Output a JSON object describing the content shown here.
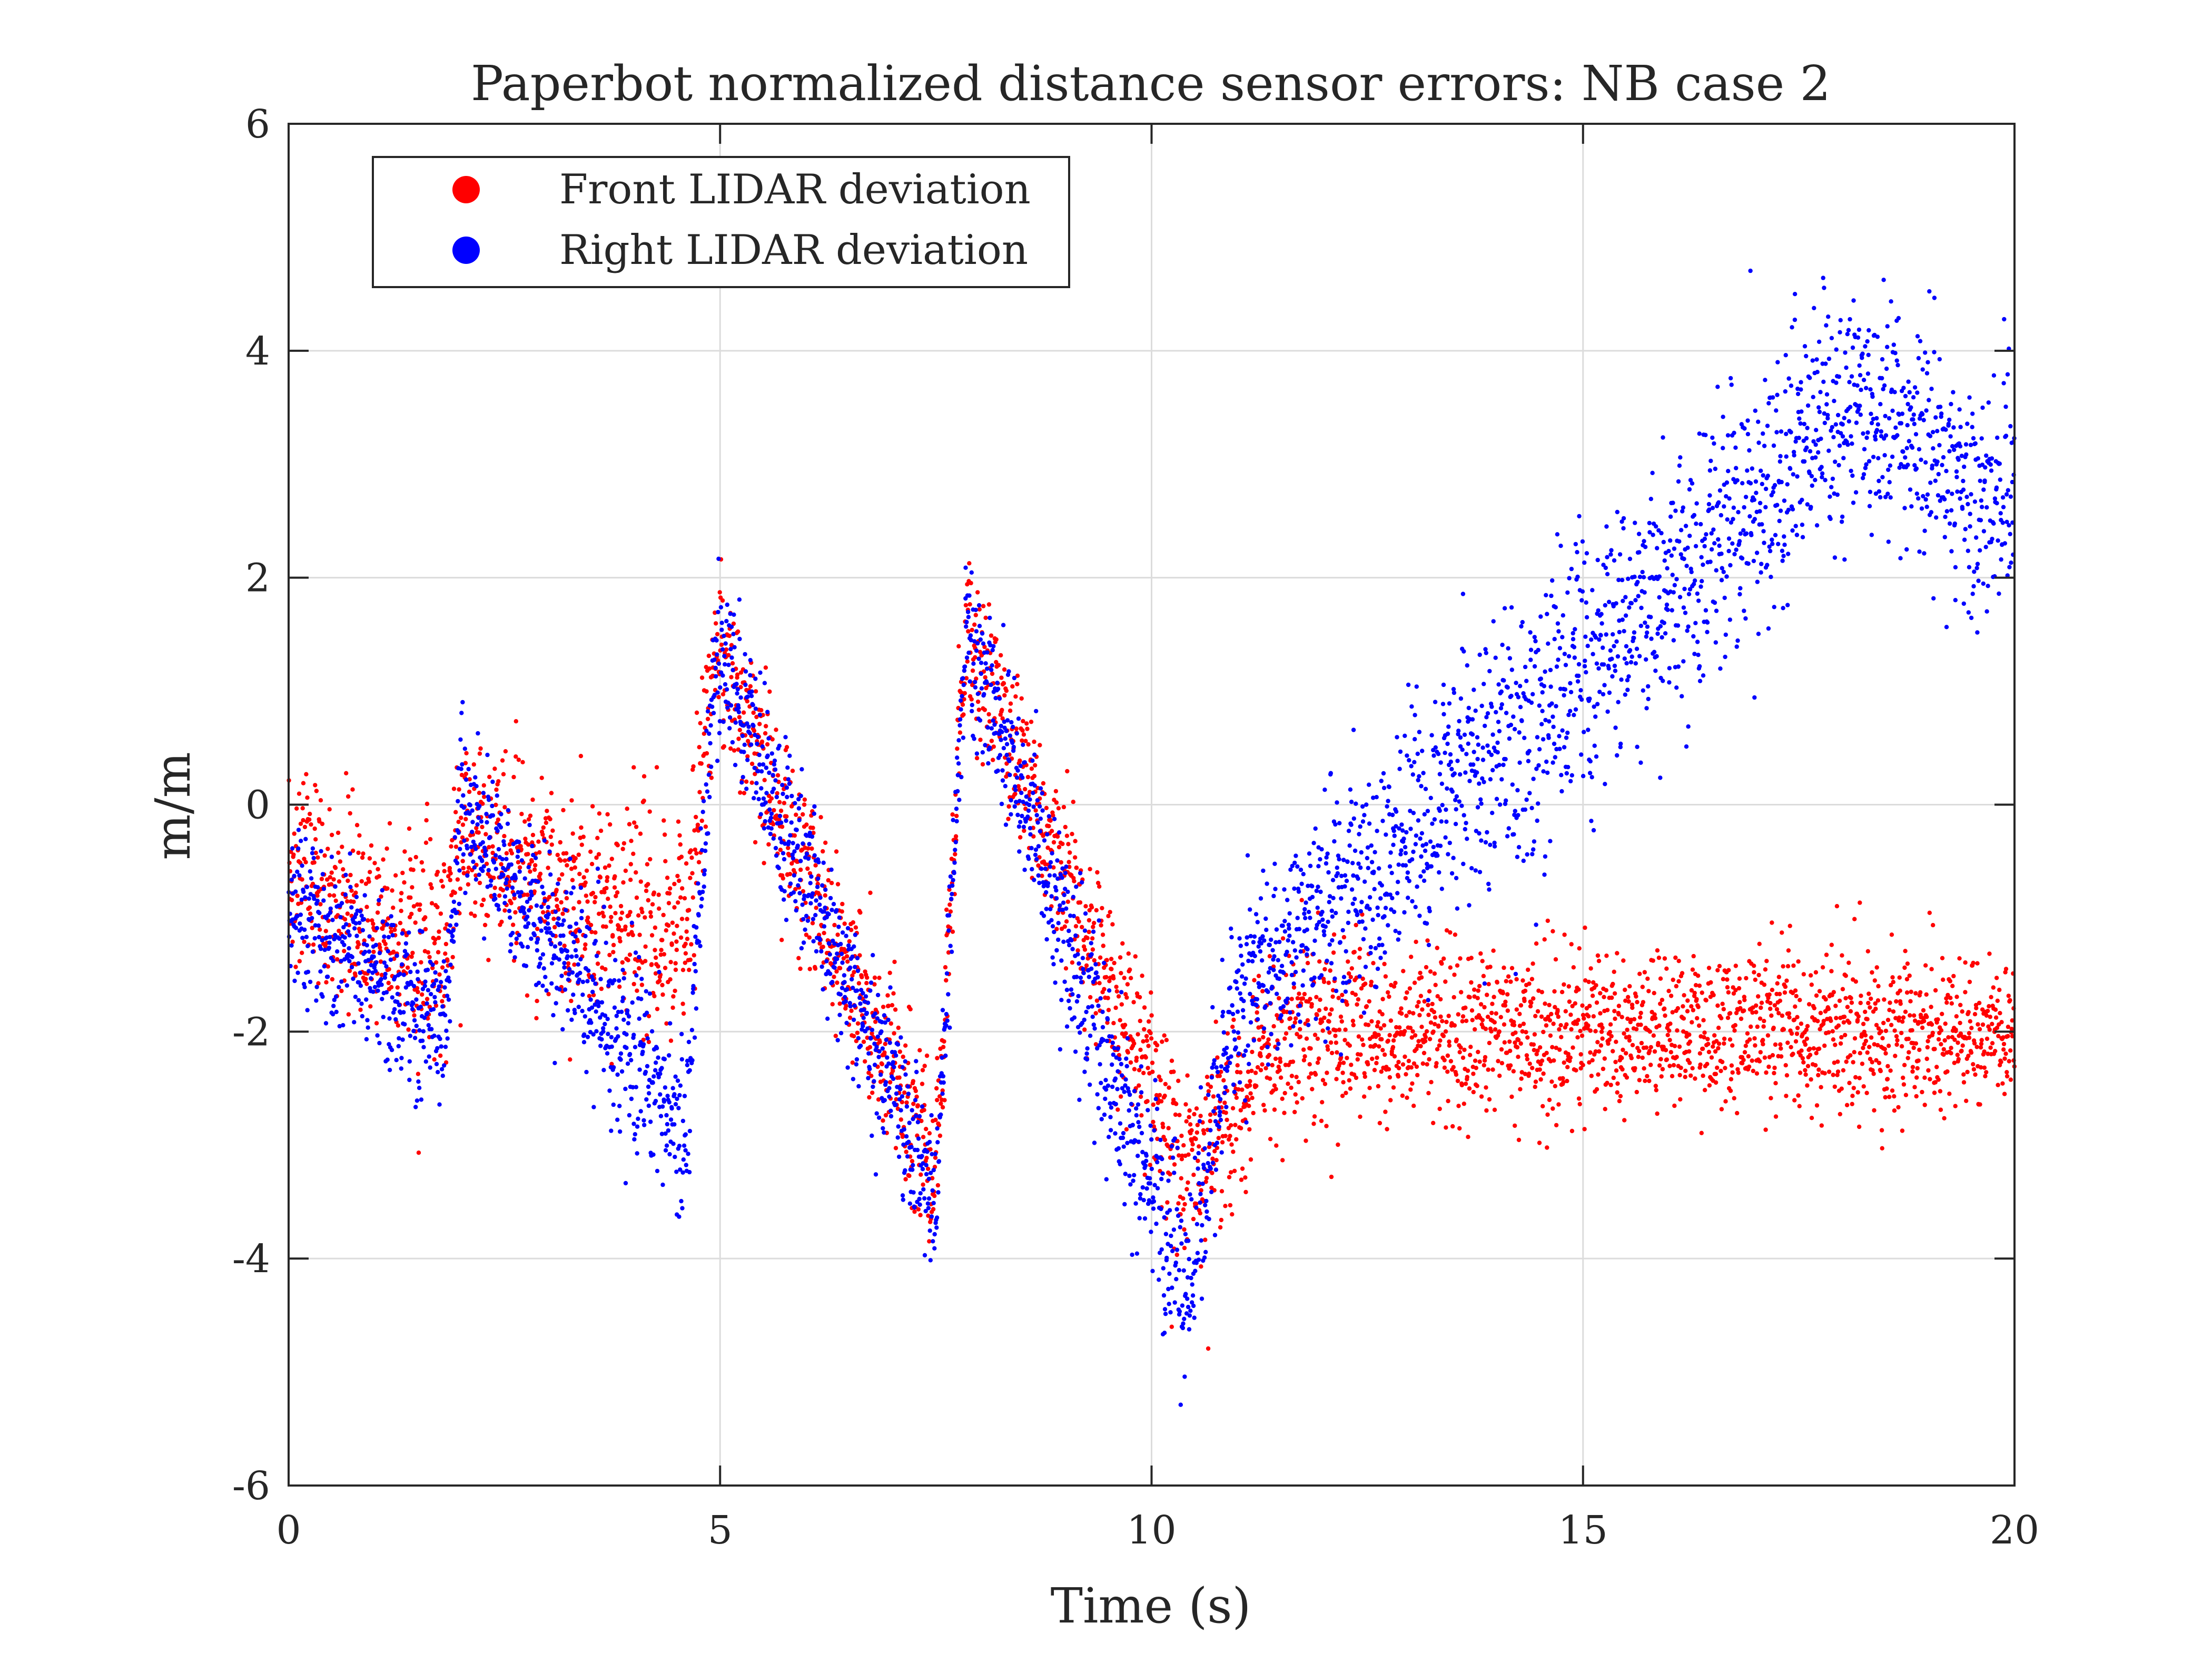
{
  "chart_data": {
    "type": "scatter",
    "title": "Paperbot normalized distance sensor errors: NB case 2",
    "xlabel": "Time (s)",
    "ylabel": "m/m",
    "xlim": [
      0,
      20
    ],
    "ylim": [
      -6,
      6
    ],
    "xticks": [
      0,
      5,
      10,
      15,
      20
    ],
    "yticks": [
      -6,
      -4,
      -2,
      0,
      2,
      4,
      6
    ],
    "xtick_labels": [
      "0",
      "5",
      "10",
      "15",
      "20"
    ],
    "ytick_labels": [
      "-6",
      "-4",
      "-2",
      "0",
      "2",
      "4",
      "6"
    ],
    "grid": true,
    "legend_position": "top-left",
    "samples_per_series": 4000,
    "series": [
      {
        "name": "Front LIDAR deviation",
        "color": "#ff0000",
        "trend": [
          [
            0,
            -0.6
          ],
          [
            1.8,
            -1.4
          ],
          [
            2.0,
            -0.3
          ],
          [
            4.6,
            -1.2
          ],
          [
            4.95,
            1.4
          ],
          [
            7.5,
            -3.3
          ],
          [
            7.85,
            1.5
          ],
          [
            10.4,
            -3.3
          ],
          [
            11.5,
            -2.0
          ],
          [
            20,
            -2.0
          ]
        ],
        "spread": [
          [
            0,
            0.45
          ],
          [
            4.6,
            0.45
          ],
          [
            5.0,
            0.35
          ],
          [
            7.5,
            0.4
          ],
          [
            8.0,
            0.35
          ],
          [
            10.4,
            0.45
          ],
          [
            11.5,
            0.4
          ],
          [
            20,
            0.32
          ]
        ]
      },
      {
        "name": "Right LIDAR deviation",
        "color": "#0000ff",
        "trend": [
          [
            0,
            -0.9
          ],
          [
            1.8,
            -2.0
          ],
          [
            2.0,
            0.0
          ],
          [
            4.6,
            -2.9
          ],
          [
            4.95,
            1.4
          ],
          [
            7.5,
            -3.5
          ],
          [
            7.85,
            1.6
          ],
          [
            10.4,
            -4.3
          ],
          [
            11.0,
            -1.7
          ],
          [
            13.0,
            -0.2
          ],
          [
            15.0,
            1.2
          ],
          [
            18.2,
            3.6
          ],
          [
            20,
            2.5
          ]
        ],
        "spread": [
          [
            0,
            0.35
          ],
          [
            4.6,
            0.4
          ],
          [
            5.0,
            0.35
          ],
          [
            7.5,
            0.35
          ],
          [
            8.0,
            0.35
          ],
          [
            10.4,
            0.45
          ],
          [
            11.0,
            0.4
          ],
          [
            13.0,
            0.55
          ],
          [
            15.0,
            0.6
          ],
          [
            18.2,
            0.55
          ],
          [
            20,
            0.55
          ]
        ]
      }
    ]
  }
}
